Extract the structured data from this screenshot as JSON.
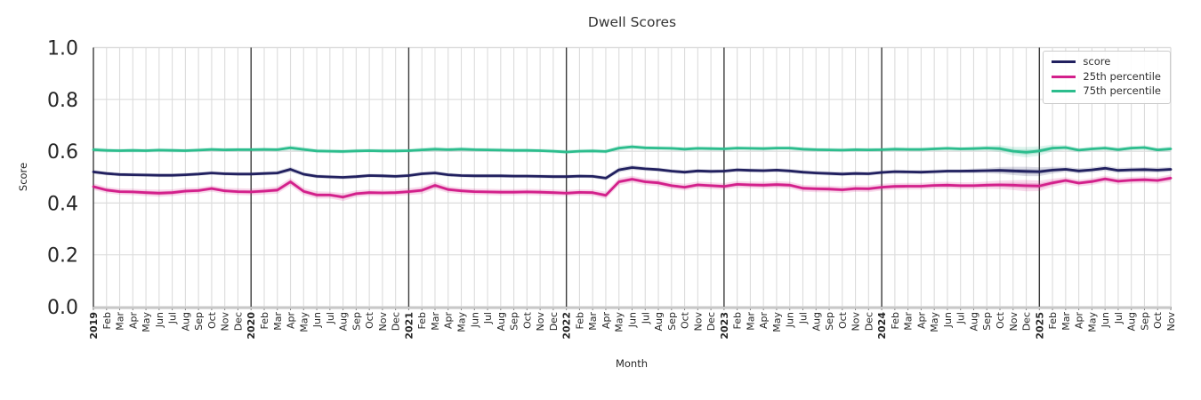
{
  "chart_data": {
    "type": "line",
    "title": "Dwell Scores",
    "xlabel": "Month",
    "ylabel": "Score",
    "ylim": [
      0.0,
      1.0
    ],
    "yticks": [
      0.0,
      0.2,
      0.4,
      0.6,
      0.8,
      1.0
    ],
    "ytick_labels": [
      "0.0",
      "0.2",
      "0.4",
      "0.6",
      "0.8",
      "1.0"
    ],
    "grid": true,
    "legend_position": "upper right",
    "x_labels": [
      "2019",
      "Feb",
      "Mar",
      "Apr",
      "May",
      "Jun",
      "Jul",
      "Aug",
      "Sep",
      "Oct",
      "Nov",
      "Dec",
      "2020",
      "Feb",
      "Mar",
      "Apr",
      "May",
      "Jun",
      "Jul",
      "Aug",
      "Sep",
      "Oct",
      "Nov",
      "Dec",
      "2021",
      "Feb",
      "Mar",
      "Apr",
      "May",
      "Jun",
      "Jul",
      "Aug",
      "Sep",
      "Oct",
      "Nov",
      "Dec",
      "2022",
      "Feb",
      "Mar",
      "Apr",
      "May",
      "Jun",
      "Jul",
      "Aug",
      "Sep",
      "Oct",
      "Nov",
      "Dec",
      "2023",
      "Feb",
      "Mar",
      "Apr",
      "May",
      "Jun",
      "Jul",
      "Aug",
      "Sep",
      "Oct",
      "Nov",
      "Dec",
      "2024",
      "Feb",
      "Mar",
      "Apr",
      "May",
      "Jun",
      "Jul",
      "Aug",
      "Sep",
      "Oct",
      "Nov",
      "Dec",
      "2025",
      "Feb",
      "Mar",
      "Apr",
      "May",
      "Jun",
      "Jul",
      "Aug",
      "Sep",
      "Oct",
      "Nov"
    ],
    "year_tick_indices": [
      0,
      12,
      24,
      36,
      48,
      60,
      72
    ],
    "series": [
      {
        "name": "score",
        "color": "#21205f",
        "values": [
          0.52,
          0.514,
          0.51,
          0.509,
          0.508,
          0.507,
          0.507,
          0.509,
          0.512,
          0.516,
          0.513,
          0.512,
          0.512,
          0.514,
          0.516,
          0.53,
          0.511,
          0.503,
          0.501,
          0.499,
          0.502,
          0.506,
          0.505,
          0.503,
          0.506,
          0.513,
          0.516,
          0.509,
          0.506,
          0.505,
          0.505,
          0.505,
          0.504,
          0.504,
          0.503,
          0.502,
          0.502,
          0.504,
          0.503,
          0.496,
          0.528,
          0.537,
          0.532,
          0.529,
          0.523,
          0.519,
          0.524,
          0.522,
          0.523,
          0.528,
          0.526,
          0.525,
          0.527,
          0.524,
          0.519,
          0.516,
          0.514,
          0.512,
          0.514,
          0.513,
          0.518,
          0.521,
          0.52,
          0.519,
          0.521,
          0.523,
          0.523,
          0.524,
          0.525,
          0.526,
          0.524,
          0.522,
          0.521,
          0.527,
          0.53,
          0.524,
          0.528,
          0.534,
          0.526,
          0.528,
          0.529,
          0.527,
          0.53
        ],
        "band": [
          0.008,
          0.007,
          0.007,
          0.007,
          0.007,
          0.007,
          0.007,
          0.007,
          0.007,
          0.007,
          0.007,
          0.007,
          0.007,
          0.007,
          0.008,
          0.01,
          0.008,
          0.007,
          0.007,
          0.007,
          0.007,
          0.007,
          0.007,
          0.007,
          0.007,
          0.008,
          0.008,
          0.007,
          0.007,
          0.007,
          0.007,
          0.007,
          0.007,
          0.007,
          0.007,
          0.007,
          0.007,
          0.007,
          0.007,
          0.008,
          0.01,
          0.009,
          0.008,
          0.008,
          0.008,
          0.008,
          0.008,
          0.008,
          0.008,
          0.008,
          0.008,
          0.008,
          0.008,
          0.008,
          0.008,
          0.008,
          0.008,
          0.008,
          0.008,
          0.008,
          0.008,
          0.008,
          0.008,
          0.008,
          0.008,
          0.008,
          0.008,
          0.009,
          0.01,
          0.013,
          0.016,
          0.018,
          0.017,
          0.013,
          0.01,
          0.01,
          0.01,
          0.01,
          0.01,
          0.01,
          0.01,
          0.01,
          0.01
        ]
      },
      {
        "name": "25th percentile",
        "color": "#d3208b",
        "values": [
          0.463,
          0.45,
          0.444,
          0.443,
          0.44,
          0.438,
          0.44,
          0.446,
          0.448,
          0.456,
          0.447,
          0.444,
          0.443,
          0.446,
          0.45,
          0.482,
          0.445,
          0.431,
          0.431,
          0.423,
          0.436,
          0.44,
          0.439,
          0.44,
          0.444,
          0.449,
          0.468,
          0.452,
          0.447,
          0.444,
          0.443,
          0.442,
          0.442,
          0.443,
          0.442,
          0.44,
          0.438,
          0.441,
          0.44,
          0.43,
          0.482,
          0.492,
          0.482,
          0.478,
          0.467,
          0.461,
          0.47,
          0.467,
          0.464,
          0.472,
          0.47,
          0.469,
          0.471,
          0.469,
          0.457,
          0.455,
          0.454,
          0.451,
          0.456,
          0.455,
          0.461,
          0.464,
          0.465,
          0.465,
          0.468,
          0.469,
          0.467,
          0.467,
          0.469,
          0.47,
          0.469,
          0.467,
          0.466,
          0.478,
          0.487,
          0.477,
          0.483,
          0.493,
          0.484,
          0.488,
          0.49,
          0.487,
          0.496
        ],
        "band": [
          0.013,
          0.012,
          0.012,
          0.012,
          0.013,
          0.014,
          0.013,
          0.013,
          0.012,
          0.012,
          0.012,
          0.013,
          0.013,
          0.013,
          0.014,
          0.015,
          0.014,
          0.014,
          0.013,
          0.015,
          0.013,
          0.012,
          0.012,
          0.012,
          0.013,
          0.014,
          0.014,
          0.013,
          0.012,
          0.012,
          0.012,
          0.012,
          0.012,
          0.012,
          0.012,
          0.012,
          0.012,
          0.012,
          0.012,
          0.014,
          0.014,
          0.013,
          0.013,
          0.013,
          0.013,
          0.013,
          0.013,
          0.013,
          0.013,
          0.013,
          0.013,
          0.013,
          0.013,
          0.013,
          0.013,
          0.013,
          0.013,
          0.013,
          0.013,
          0.013,
          0.013,
          0.013,
          0.013,
          0.013,
          0.013,
          0.013,
          0.013,
          0.013,
          0.014,
          0.016,
          0.019,
          0.022,
          0.02,
          0.016,
          0.013,
          0.013,
          0.013,
          0.013,
          0.013,
          0.013,
          0.013,
          0.013,
          0.014
        ]
      },
      {
        "name": "75th percentile",
        "color": "#2cbd8d",
        "values": [
          0.606,
          0.603,
          0.602,
          0.603,
          0.602,
          0.604,
          0.603,
          0.602,
          0.604,
          0.607,
          0.605,
          0.606,
          0.606,
          0.607,
          0.606,
          0.613,
          0.607,
          0.601,
          0.6,
          0.599,
          0.601,
          0.602,
          0.601,
          0.601,
          0.602,
          0.605,
          0.608,
          0.606,
          0.608,
          0.606,
          0.605,
          0.604,
          0.603,
          0.603,
          0.602,
          0.6,
          0.597,
          0.6,
          0.601,
          0.599,
          0.612,
          0.617,
          0.613,
          0.612,
          0.611,
          0.608,
          0.611,
          0.61,
          0.609,
          0.612,
          0.611,
          0.61,
          0.612,
          0.612,
          0.608,
          0.606,
          0.605,
          0.604,
          0.606,
          0.605,
          0.606,
          0.608,
          0.607,
          0.607,
          0.609,
          0.611,
          0.609,
          0.61,
          0.612,
          0.61,
          0.6,
          0.596,
          0.601,
          0.612,
          0.614,
          0.604,
          0.609,
          0.612,
          0.606,
          0.612,
          0.614,
          0.605,
          0.609
        ],
        "band": [
          0.009,
          0.008,
          0.008,
          0.008,
          0.008,
          0.008,
          0.008,
          0.008,
          0.008,
          0.008,
          0.008,
          0.008,
          0.008,
          0.008,
          0.008,
          0.01,
          0.009,
          0.008,
          0.008,
          0.008,
          0.008,
          0.008,
          0.008,
          0.008,
          0.008,
          0.009,
          0.009,
          0.008,
          0.008,
          0.008,
          0.008,
          0.008,
          0.008,
          0.008,
          0.008,
          0.008,
          0.008,
          0.008,
          0.008,
          0.008,
          0.01,
          0.009,
          0.008,
          0.008,
          0.008,
          0.008,
          0.008,
          0.008,
          0.008,
          0.008,
          0.008,
          0.008,
          0.008,
          0.008,
          0.008,
          0.008,
          0.008,
          0.008,
          0.008,
          0.008,
          0.008,
          0.008,
          0.008,
          0.008,
          0.008,
          0.008,
          0.008,
          0.009,
          0.01,
          0.013,
          0.017,
          0.02,
          0.018,
          0.013,
          0.01,
          0.009,
          0.009,
          0.009,
          0.009,
          0.009,
          0.009,
          0.009,
          0.01
        ]
      }
    ],
    "style_colors": {
      "grid": "#dcdcdc",
      "year_line": "#3a3a3a",
      "bottom_spine": "#c8c8c8",
      "text": "#262626"
    }
  }
}
